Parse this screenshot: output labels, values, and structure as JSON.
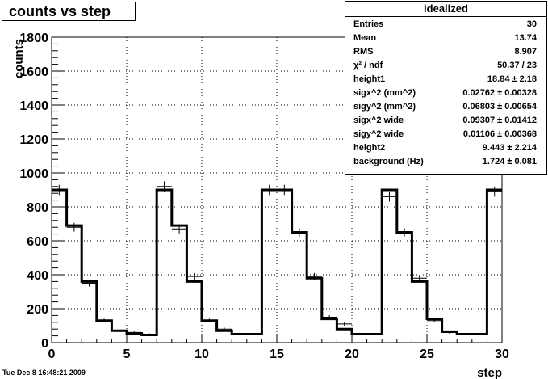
{
  "title": "counts vs step",
  "timestamp": "Tue Dec  8 16:48:21 2009",
  "stats": {
    "header": "idealized",
    "rows": [
      {
        "label": "Entries",
        "value": "30"
      },
      {
        "label": "Mean",
        "value": "13.74"
      },
      {
        "label": "RMS",
        "value": "8.907"
      },
      {
        "label": "χ² / ndf",
        "value": "50.37 / 23"
      },
      {
        "label": "height1",
        "value": "18.84 ± 2.18"
      },
      {
        "label": "sigx^2 (mm^2)",
        "value": "0.02762 ± 0.00328"
      },
      {
        "label": "sigy^2 (mm^2)",
        "value": "0.06803 ± 0.00654"
      },
      {
        "label": "sigx^2 wide",
        "value": "0.09307 ± 0.01412"
      },
      {
        "label": "sigy^2 wide",
        "value": "0.01106 ± 0.00368"
      },
      {
        "label": "height2",
        "value": "9.443 ± 2.214"
      },
      {
        "label": "background (Hz)",
        "value": "1.724 ± 0.081"
      }
    ]
  },
  "chart_data": {
    "type": "line",
    "title": "counts vs step",
    "xlabel": "step",
    "ylabel": "counts",
    "xlim": [
      0,
      30
    ],
    "ylim": [
      0,
      1800
    ],
    "grid": true,
    "x_ticks": [
      0,
      5,
      10,
      15,
      20,
      25,
      30
    ],
    "y_ticks": [
      0,
      200,
      400,
      600,
      800,
      1000,
      1200,
      1400,
      1600,
      1800
    ],
    "series": [
      {
        "style": "histogram-errors",
        "x": [
          0.5,
          1.5,
          2.5,
          3.5,
          4.5,
          5.5,
          6.5,
          7.5,
          8.5,
          9.5,
          10.5,
          11.5,
          12.5,
          13.5,
          14.5,
          15.5,
          16.5,
          17.5,
          18.5,
          19.5,
          20.5,
          21.5,
          22.5,
          23.5,
          24.5,
          25.5,
          26.5,
          27.5,
          28.5,
          29.5
        ],
        "values": [
          900,
          680,
          350,
          130,
          70,
          60,
          50,
          920,
          670,
          390,
          130,
          80,
          50,
          50,
          900,
          900,
          650,
          390,
          150,
          110,
          50,
          50,
          860,
          650,
          380,
          130,
          60,
          50,
          50,
          890
        ],
        "errors": [
          30,
          26,
          19,
          11,
          8,
          8,
          7,
          30,
          26,
          20,
          11,
          9,
          7,
          7,
          30,
          30,
          25,
          20,
          12,
          10,
          7,
          7,
          29,
          25,
          19,
          11,
          8,
          7,
          7,
          30
        ]
      },
      {
        "style": "fit-step",
        "x": [
          0.5,
          1.5,
          2.5,
          3.5,
          4.5,
          5.5,
          6.5,
          7.5,
          8.5,
          9.5,
          10.5,
          11.5,
          12.5,
          13.5,
          14.5,
          15.5,
          16.5,
          17.5,
          18.5,
          19.5,
          20.5,
          21.5,
          22.5,
          23.5,
          24.5,
          25.5,
          26.5,
          27.5,
          28.5,
          29.5
        ],
        "values": [
          900,
          690,
          360,
          130,
          70,
          55,
          45,
          900,
          690,
          360,
          130,
          70,
          50,
          50,
          900,
          900,
          650,
          380,
          140,
          80,
          50,
          50,
          900,
          650,
          360,
          140,
          65,
          50,
          50,
          900
        ]
      }
    ]
  }
}
